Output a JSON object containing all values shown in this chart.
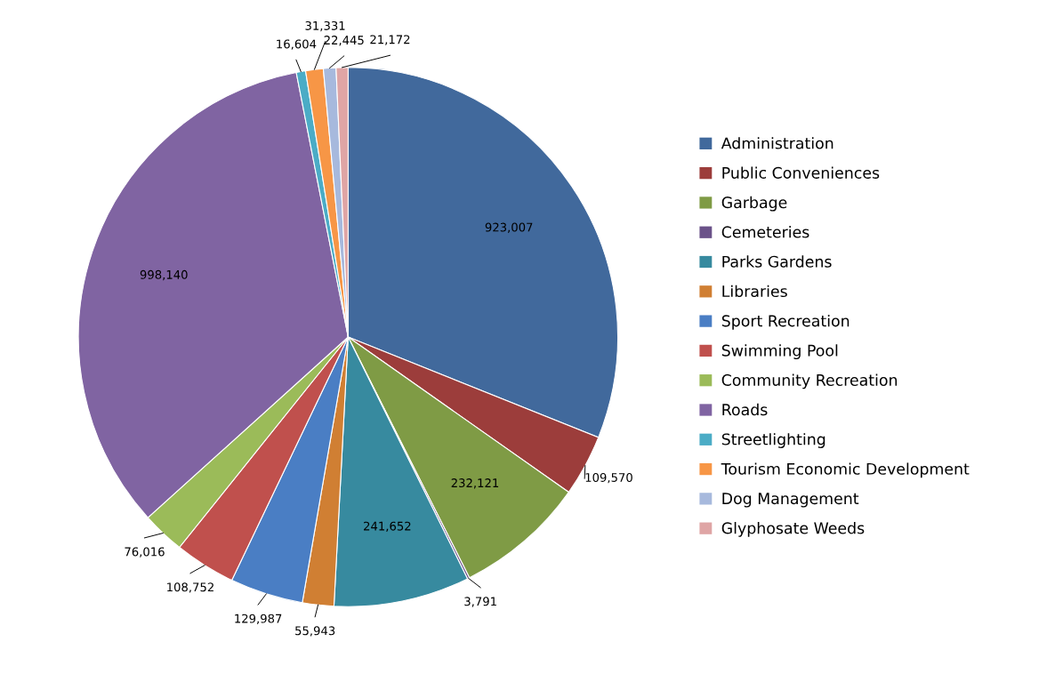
{
  "chart_data": {
    "type": "pie",
    "categories": [
      "Administration",
      "Public Conveniences",
      "Garbage",
      "Cemeteries",
      "Parks Gardens",
      "Libraries",
      "Sport Recreation",
      "Swimming Pool",
      "Community Recreation",
      "Roads",
      "Streetlighting",
      "Tourism Economic Development",
      "Dog Management",
      "Glyphosate Weeds"
    ],
    "values": [
      923007,
      109570,
      232121,
      3791,
      241652,
      55943,
      129987,
      108752,
      76016,
      998140,
      16604,
      31331,
      22445,
      21172
    ],
    "colors": [
      "#41699c",
      "#9c3d3b",
      "#7f9b45",
      "#6b5289",
      "#378a9f",
      "#d07f33",
      "#4a7ec4",
      "#c0504d",
      "#9bbb59",
      "#8064a2",
      "#4bacc6",
      "#f79646",
      "#a7b9dd",
      "#dfa5a5"
    ],
    "value_labels": [
      "923,007",
      "109,570",
      "232,121",
      "3,791",
      "241,652",
      "55,943",
      "129,987",
      "108,752",
      "76,016",
      "998,140",
      "16,604",
      "31,331",
      "22,445",
      "21,172"
    ],
    "legend": "right"
  }
}
